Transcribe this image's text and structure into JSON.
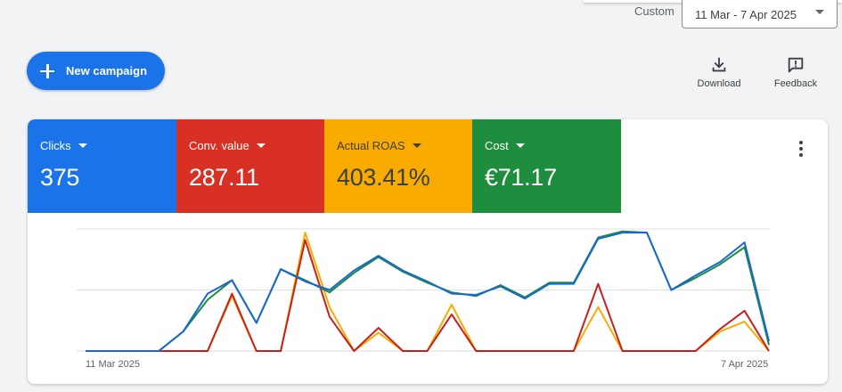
{
  "header": {
    "custom_label": "Custom",
    "date_range": "11 Mar - 7 Apr 2025"
  },
  "toolbar": {
    "new_campaign_label": "New campaign",
    "download_label": "Download",
    "feedback_label": "Feedback"
  },
  "metrics": [
    {
      "name": "Clicks",
      "value": "375",
      "color": "#1a73e8"
    },
    {
      "name": "Conv. value",
      "value": "287.11",
      "color": "#d93025"
    },
    {
      "name": "Actual ROAS",
      "value": "403.41%",
      "color": "#f9ab00"
    },
    {
      "name": "Cost",
      "value": "€71.17",
      "color": "#1e8e3e"
    }
  ],
  "chart_data": {
    "type": "line",
    "x_start_label": "11 Mar 2025",
    "x_end_label": "7 Apr 2025",
    "grid": true,
    "ylim": [
      0,
      1
    ],
    "series": [
      {
        "color": "#1e8e3e",
        "values": [
          0,
          0,
          0,
          0,
          0.16,
          0.42,
          0.58,
          0.23,
          0.67,
          0.58,
          0.48,
          0.64,
          0.77,
          0.65,
          0.56,
          0.48,
          0.45,
          0.54,
          0.44,
          0.56,
          0.56,
          0.93,
          0.98,
          0.97,
          0.5,
          0.6,
          0.71,
          0.85,
          0.05
        ]
      },
      {
        "color": "#1967d2",
        "values": [
          0,
          0,
          0,
          0,
          0.16,
          0.47,
          0.58,
          0.23,
          0.67,
          0.57,
          0.5,
          0.66,
          0.78,
          0.66,
          0.57,
          0.47,
          0.46,
          0.53,
          0.43,
          0.55,
          0.55,
          0.92,
          0.97,
          0.97,
          0.5,
          0.62,
          0.73,
          0.89,
          0.08
        ]
      },
      {
        "color": "#c5221f",
        "values": [
          0,
          0,
          0,
          0,
          0,
          0,
          0.47,
          0,
          0,
          0.91,
          0.28,
          0,
          0.19,
          0,
          0,
          0.3,
          0,
          0,
          0,
          0,
          0,
          0.55,
          0,
          0,
          0,
          0,
          0.18,
          0.33,
          0
        ]
      },
      {
        "color": "#f9ab00",
        "values": [
          0,
          0,
          0,
          0,
          0,
          0,
          0.45,
          0,
          0,
          0.97,
          0.36,
          0,
          0.15,
          0,
          0,
          0.38,
          0,
          0,
          0,
          0,
          0,
          0.36,
          0,
          0,
          0,
          0,
          0.16,
          0.24,
          0
        ]
      }
    ]
  }
}
